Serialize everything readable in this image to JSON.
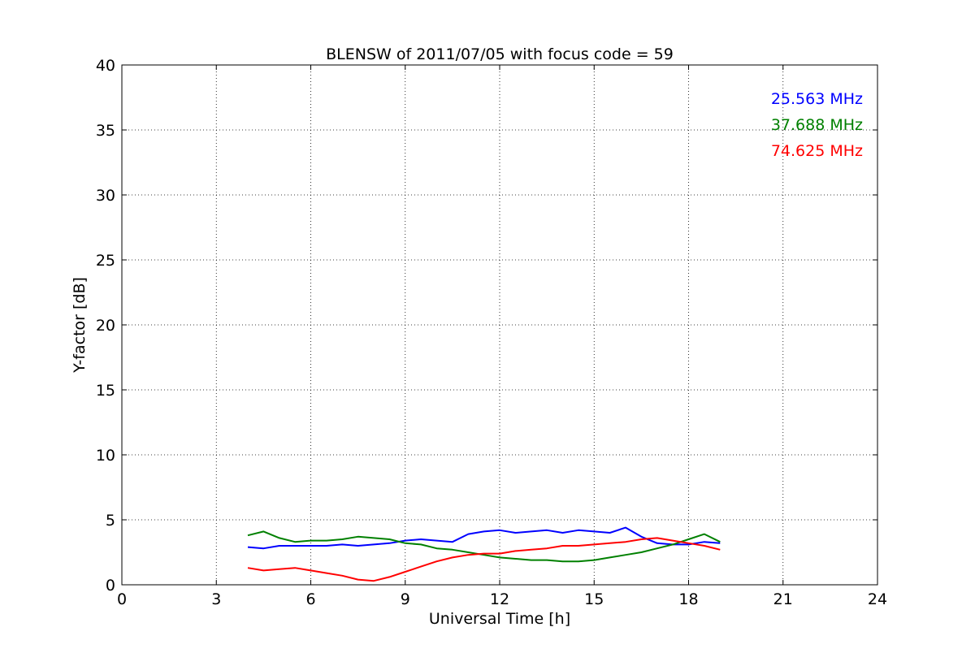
{
  "chart_data": {
    "type": "line",
    "title": "BLENSW of 2011/07/05 with focus code = 59",
    "xlabel": "Universal Time [h]",
    "ylabel": "Y-factor [dB]",
    "xlim": [
      0,
      24
    ],
    "ylim": [
      0,
      40
    ],
    "xticks": [
      0,
      3,
      6,
      9,
      12,
      15,
      18,
      21,
      24
    ],
    "yticks": [
      0,
      5,
      10,
      15,
      20,
      25,
      30,
      35,
      40
    ],
    "xtick_labels": [
      "0",
      "3",
      "6",
      "9",
      "12",
      "15",
      "18",
      "21",
      "24"
    ],
    "ytick_labels": [
      "0",
      "5",
      "10",
      "15",
      "20",
      "25",
      "30",
      "35",
      "40"
    ],
    "grid": true,
    "legend_position": "top-right",
    "series": [
      {
        "name": "25.563 MHz",
        "color": "#0000ff",
        "x": [
          4.0,
          4.5,
          5.0,
          5.5,
          6.0,
          6.5,
          7.0,
          7.5,
          8.0,
          8.5,
          9.0,
          9.5,
          10.0,
          10.5,
          11.0,
          11.5,
          12.0,
          12.5,
          13.0,
          13.5,
          14.0,
          14.5,
          15.0,
          15.5,
          16.0,
          16.5,
          17.0,
          17.5,
          18.0,
          18.5,
          19.0
        ],
        "y": [
          2.9,
          2.8,
          3.0,
          3.0,
          3.0,
          3.0,
          3.1,
          3.0,
          3.1,
          3.2,
          3.4,
          3.5,
          3.4,
          3.3,
          3.9,
          4.1,
          4.2,
          4.0,
          4.1,
          4.2,
          4.0,
          4.2,
          4.1,
          4.0,
          4.4,
          3.7,
          3.2,
          3.1,
          3.1,
          3.3,
          3.2
        ]
      },
      {
        "name": "37.688 MHz",
        "color": "#008000",
        "x": [
          4.0,
          4.5,
          5.0,
          5.5,
          6.0,
          6.5,
          7.0,
          7.5,
          8.0,
          8.5,
          9.0,
          9.5,
          10.0,
          10.5,
          11.0,
          11.5,
          12.0,
          12.5,
          13.0,
          13.5,
          14.0,
          14.5,
          15.0,
          15.5,
          16.0,
          16.5,
          17.0,
          17.5,
          18.0,
          18.5,
          19.0
        ],
        "y": [
          3.8,
          4.1,
          3.6,
          3.3,
          3.4,
          3.4,
          3.5,
          3.7,
          3.6,
          3.5,
          3.2,
          3.1,
          2.8,
          2.7,
          2.5,
          2.3,
          2.1,
          2.0,
          1.9,
          1.9,
          1.8,
          1.8,
          1.9,
          2.1,
          2.3,
          2.5,
          2.8,
          3.1,
          3.5,
          3.9,
          3.3
        ]
      },
      {
        "name": "74.625 MHz",
        "color": "#ff0000",
        "x": [
          4.0,
          4.5,
          5.0,
          5.5,
          6.0,
          6.5,
          7.0,
          7.5,
          8.0,
          8.5,
          9.0,
          9.5,
          10.0,
          10.5,
          11.0,
          11.5,
          12.0,
          12.5,
          13.0,
          13.5,
          14.0,
          14.5,
          15.0,
          15.5,
          16.0,
          16.5,
          17.0,
          17.5,
          18.0,
          18.5,
          19.0
        ],
        "y": [
          1.3,
          1.1,
          1.2,
          1.3,
          1.1,
          0.9,
          0.7,
          0.4,
          0.3,
          0.6,
          1.0,
          1.4,
          1.8,
          2.1,
          2.3,
          2.4,
          2.4,
          2.6,
          2.7,
          2.8,
          3.0,
          3.0,
          3.1,
          3.2,
          3.3,
          3.5,
          3.6,
          3.4,
          3.2,
          3.0,
          2.7
        ]
      }
    ]
  }
}
